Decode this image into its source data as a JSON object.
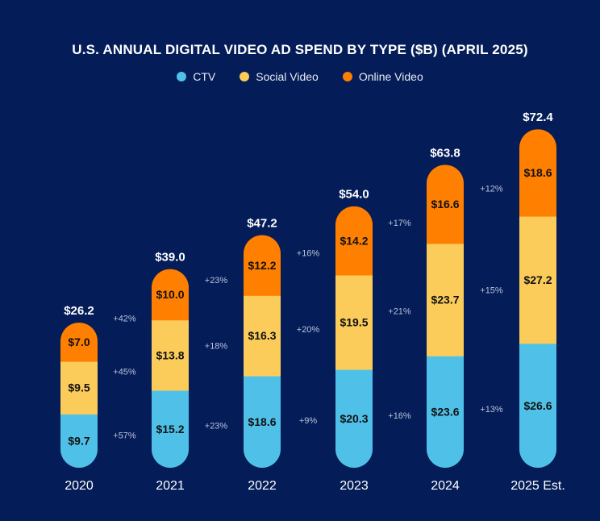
{
  "chart_data": {
    "type": "bar",
    "stacked": true,
    "title": "U.S. ANNUAL DIGITAL VIDEO AD SPEND BY TYPE ($B) (APRIL 2025)",
    "categories": [
      "2020",
      "2021",
      "2022",
      "2023",
      "2024",
      "2025 Est."
    ],
    "series": [
      {
        "name": "CTV",
        "color": "#4fc0e8",
        "values": [
          9.7,
          15.2,
          18.6,
          20.3,
          23.6,
          26.6
        ]
      },
      {
        "name": "Social Video",
        "color": "#fccc5a",
        "values": [
          9.5,
          13.8,
          16.3,
          19.5,
          23.7,
          27.2
        ]
      },
      {
        "name": "Online Video",
        "color": "#ff7f00",
        "values": [
          7.0,
          10.0,
          12.2,
          14.2,
          16.6,
          18.6
        ]
      }
    ],
    "totals": [
      "$26.2",
      "$39.0",
      "$47.2",
      "$54.0",
      "$63.8",
      "$72.4"
    ],
    "value_labels": [
      [
        "$9.7",
        "$15.2",
        "$18.6",
        "$20.3",
        "$23.6",
        "$26.6"
      ],
      [
        "$9.5",
        "$13.8",
        "$16.3",
        "$19.5",
        "$23.7",
        "$27.2"
      ],
      [
        "$7.0",
        "$10.0",
        "$12.2",
        "$14.2",
        "$16.6",
        "$18.6"
      ]
    ],
    "growth_labels": [
      [
        "+57%",
        "+23%",
        "+9%",
        "+16%",
        "+13%"
      ],
      [
        "+45%",
        "+18%",
        "+20%",
        "+21%",
        "+15%"
      ],
      [
        "+42%",
        "+23%",
        "+16%",
        "+17%",
        "+12%"
      ]
    ],
    "legend": "top-center",
    "grid": false
  },
  "colors": {
    "background": "#041c57",
    "text": "#ffffff",
    "growth_text": "#b9c3dc"
  }
}
